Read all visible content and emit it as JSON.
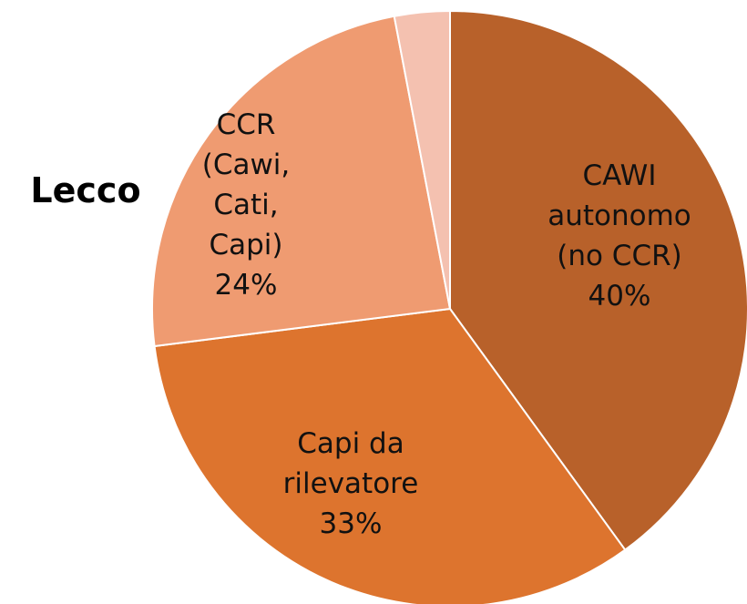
{
  "chart_data": {
    "type": "pie",
    "title": "Lecco",
    "categories": [
      "CAWI\nautonomo\n(no CCR)",
      "Capi da\nrilevatore",
      "CCR\n(Cawi,\nCati,\nCapi)",
      null
    ],
    "values": [
      40,
      33,
      24,
      3
    ],
    "value_labels": [
      "40%",
      "33%",
      "24%",
      null
    ],
    "colors": [
      "#b8612a",
      "#dd742e",
      "#ef9b71",
      "#f4c1b0"
    ]
  }
}
